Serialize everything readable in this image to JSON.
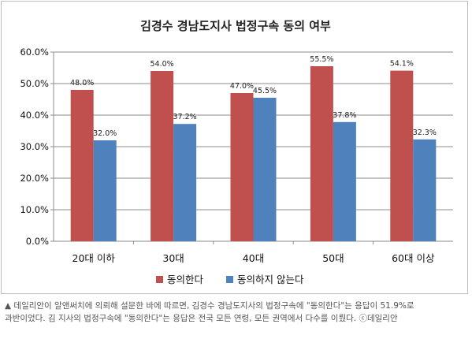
{
  "chart_data": {
    "type": "bar",
    "title": "김경수 경남도지사 법정구속 동의 여부",
    "categories": [
      "20대 이하",
      "30대",
      "40대",
      "50대",
      "60대 이상"
    ],
    "series": [
      {
        "name": "동의한다",
        "color": "#c0504d",
        "values": [
          48.0,
          54.0,
          47.0,
          55.5,
          54.1
        ],
        "labels": [
          "48.0%",
          "54.0%",
          "47.0%",
          "55.5%",
          "54.1%"
        ]
      },
      {
        "name": "동의하지 않는다",
        "color": "#4f81bd",
        "values": [
          32.0,
          37.2,
          45.5,
          37.8,
          32.3
        ],
        "labels": [
          "32.0%",
          "37.2%",
          "45.5%",
          "37.8%",
          "32.3%"
        ]
      }
    ],
    "ylim": [
      0,
      60
    ],
    "yticks": [
      "0.0%",
      "10.0%",
      "20.0%",
      "30.0%",
      "40.0%",
      "50.0%",
      "60.0%"
    ],
    "grid": true,
    "legend_position": "bottom"
  },
  "caption": {
    "line1": "▲ 데일리안이 알앤써치에 의뢰해 설문한 바에 따르면, 김경수 경남도지사의 법정구속에 \"동의한다\"는 응답이 51.9%로",
    "line2": "과반이었다. 김 지사의 법정구속에 \"동의한다\"는 응답은 전국 모든 연령, 모든 권역에서 다수를 이뤘다. ⓒ데일리안"
  }
}
